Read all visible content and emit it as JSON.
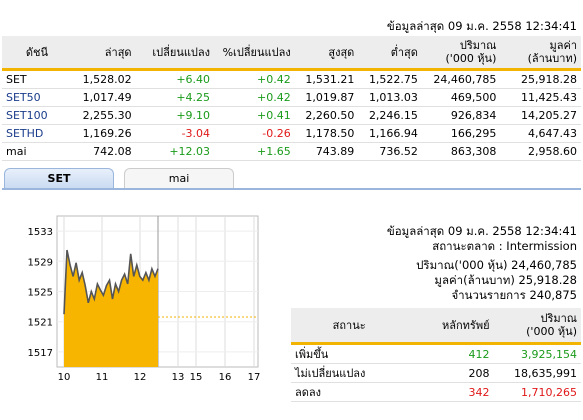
{
  "top_timestamp": "ข้อมูลล่าสุด 09 ม.ค. 2558 12:34:41",
  "index_table": {
    "headers": [
      "ดัชนี",
      "ล่าสุด",
      "เปลี่ยนแปลง",
      "%เปลี่ยนแปลง",
      "สูงสุด",
      "ต่ำสุด",
      "ปริมาณ",
      "('000 หุ้น)",
      "มูลค่า",
      "(ล้านบาท)"
    ],
    "rows": [
      {
        "name": "SET",
        "last": "1,528.02",
        "chg": "+6.40",
        "pct": "+0.42",
        "high": "1,531.21",
        "low": "1,522.75",
        "vol": "24,460,785",
        "val": "25,918.28"
      },
      {
        "name": "SET50",
        "last": "1,017.49",
        "chg": "+4.25",
        "pct": "+0.42",
        "high": "1,019.87",
        "low": "1,013.03",
        "vol": "469,500",
        "val": "11,425.43"
      },
      {
        "name": "SET100",
        "last": "2,255.30",
        "chg": "+9.10",
        "pct": "+0.41",
        "high": "2,260.50",
        "low": "2,246.15",
        "vol": "926,834",
        "val": "14,205.27"
      },
      {
        "name": "SETHD",
        "last": "1,169.26",
        "chg": "-3.04",
        "pct": "-0.26",
        "high": "1,178.50",
        "low": "1,166.94",
        "vol": "166,295",
        "val": "4,647.43"
      },
      {
        "name": "mai",
        "last": "742.08",
        "chg": "+12.03",
        "pct": "+1.65",
        "high": "743.89",
        "low": "736.52",
        "vol": "863,308",
        "val": "2,958.60"
      }
    ]
  },
  "tabs": [
    "SET",
    "mai"
  ],
  "colors": {
    "up": "#1a9b1a",
    "down": "#e01818",
    "accent": "#f2b400",
    "chart_fill": "#f7b500"
  },
  "chart_data": {
    "type": "area",
    "x_ticks": [
      "10",
      "11",
      "12",
      "13",
      "15",
      "16",
      "17"
    ],
    "y_ticks": [
      "1533",
      "1529",
      "1525",
      "1521",
      "1517"
    ],
    "ylim": [
      1515,
      1535
    ],
    "x": [
      "10:00",
      "10:05",
      "10:10",
      "10:15",
      "10:20",
      "10:25",
      "10:30",
      "10:35",
      "10:40",
      "10:45",
      "10:50",
      "10:55",
      "11:00",
      "11:05",
      "11:10",
      "11:15",
      "11:20",
      "11:25",
      "11:30",
      "11:35",
      "11:40",
      "11:45",
      "11:50",
      "11:55",
      "12:00",
      "12:05",
      "12:10",
      "12:15",
      "12:20",
      "12:25",
      "12:30",
      "12:34"
    ],
    "values": [
      1522.0,
      1530.5,
      1528.5,
      1527.0,
      1528.8,
      1526.5,
      1527.5,
      1525.8,
      1523.5,
      1525.0,
      1524.0,
      1526.0,
      1525.2,
      1524.5,
      1525.8,
      1526.5,
      1524.0,
      1526.0,
      1525.0,
      1526.5,
      1527.3,
      1526.0,
      1530.0,
      1527.0,
      1528.5,
      1527.0,
      1526.5,
      1527.5,
      1526.5,
      1528.0,
      1527.0,
      1528.02
    ],
    "prev_close": 1521.62
  },
  "market_info": {
    "timestamp": "ข้อมูลล่าสุด 09 ม.ค. 2558 12:34:41",
    "status": "สถานะตลาด : Intermission",
    "volume": "ปริมาณ('000 หุ้น) 24,460,785",
    "value": "มูลค่า(ล้านบาท) 25,918.28",
    "deals": "จำนวนรายการ 240,875"
  },
  "breadth_table": {
    "headers": [
      "สถานะ",
      "หลักทรัพย์",
      "ปริมาณ",
      "('000 หุ้น)"
    ],
    "rows": [
      {
        "status": "เพิ่มขึ้น",
        "count": "412",
        "vol": "3,925,154"
      },
      {
        "status": "ไม่เปลี่ยนแปลง",
        "count": "208",
        "vol": "18,635,991"
      },
      {
        "status": "ลดลง",
        "count": "342",
        "vol": "1,710,265"
      }
    ]
  }
}
